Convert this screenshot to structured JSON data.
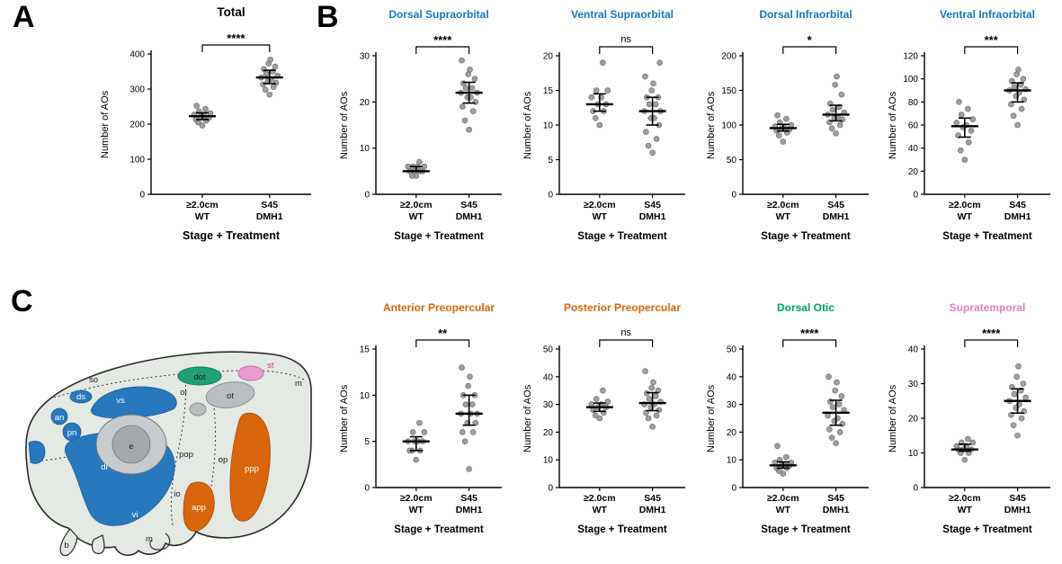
{
  "panels": {
    "a": "A",
    "b": "B",
    "c": "C"
  },
  "shared": {
    "ylabel": "Number of AOs",
    "xlabel": "Stage + Treatment",
    "group_labels": [
      [
        "≥2.0cm",
        "WT"
      ],
      [
        "S45",
        "DMH1"
      ]
    ]
  },
  "colors": {
    "blue": "#1878be",
    "orange": "#d9650d",
    "green": "#00a06a",
    "pink": "#e57fc2",
    "point_fill": "#8f8f8f",
    "axis": "#000000"
  },
  "chart_data": [
    {
      "id": "total",
      "panel": "A",
      "type": "scatter",
      "title": "Total",
      "title_color": "#000000",
      "significance": "****",
      "ylabel": "Number of AOs",
      "xlabel": "Stage + Treatment",
      "ylim": [
        0,
        400
      ],
      "yticks": [
        0,
        100,
        200,
        300,
        400
      ],
      "categories": [
        "≥2.0cm WT",
        "S45 DMH1"
      ],
      "series": [
        {
          "name": "≥2.0cm WT",
          "values": [
            196,
            205,
            210,
            214,
            218,
            221,
            224,
            227,
            231,
            236,
            243,
            252
          ]
        },
        {
          "name": "S45 DMH1",
          "values": [
            284,
            298,
            306,
            313,
            318,
            323,
            328,
            333,
            338,
            344,
            350,
            357,
            364,
            373,
            384
          ]
        }
      ]
    },
    {
      "id": "dorsal_supraorbital",
      "panel": "B",
      "type": "scatter",
      "title": "Dorsal Supraorbital",
      "title_color": "#1878be",
      "significance": "****",
      "ylabel": "Number of AOs",
      "xlabel": "Stage + Treatment",
      "ylim": [
        0,
        30
      ],
      "yticks": [
        0,
        10,
        20,
        30
      ],
      "categories": [
        "≥2.0cm WT",
        "S45 DMH1"
      ],
      "series": [
        {
          "name": "≥2.0cm WT",
          "values": [
            4,
            4,
            5,
            5,
            5,
            5,
            6,
            6,
            6,
            6,
            7
          ]
        },
        {
          "name": "S45 DMH1",
          "values": [
            14,
            16,
            18,
            19,
            20,
            21,
            21,
            22,
            22,
            23,
            23,
            24,
            25,
            26,
            27,
            29
          ]
        }
      ]
    },
    {
      "id": "ventral_supraorbital",
      "panel": "B",
      "type": "scatter",
      "title": "Ventral Supraorbital",
      "title_color": "#1878be",
      "significance": "ns",
      "ylabel": "Number of AOs",
      "xlabel": "Stage + Treatment",
      "ylim": [
        0,
        20
      ],
      "yticks": [
        0,
        5,
        10,
        15,
        20
      ],
      "categories": [
        "≥2.0cm WT",
        "S45 DMH1"
      ],
      "series": [
        {
          "name": "≥2.0cm WT",
          "values": [
            10,
            11,
            12,
            12,
            13,
            13,
            14,
            14,
            15,
            15,
            19
          ]
        },
        {
          "name": "S45 DMH1",
          "values": [
            6,
            7,
            8,
            9,
            10,
            11,
            11,
            12,
            12,
            13,
            13,
            14,
            14,
            15,
            16,
            17,
            19
          ]
        }
      ]
    },
    {
      "id": "dorsal_infraorbital",
      "panel": "B",
      "type": "scatter",
      "title": "Dorsal Infraorbital",
      "title_color": "#1878be",
      "significance": "*",
      "ylabel": "Number of AOs",
      "xlabel": "Stage + Treatment",
      "ylim": [
        0,
        200
      ],
      "yticks": [
        0,
        50,
        100,
        150,
        200
      ],
      "categories": [
        "≥2.0cm WT",
        "S45 DMH1"
      ],
      "series": [
        {
          "name": "≥2.0cm WT",
          "values": [
            76,
            85,
            89,
            92,
            94,
            95,
            96,
            98,
            100,
            104,
            109,
            114
          ]
        },
        {
          "name": "S45 DMH1",
          "values": [
            88,
            95,
            100,
            104,
            108,
            110,
            112,
            115,
            118,
            122,
            126,
            131,
            144,
            158,
            170
          ]
        }
      ]
    },
    {
      "id": "ventral_infraorbital",
      "panel": "B",
      "type": "scatter",
      "title": "Ventral Infraorbital",
      "title_color": "#1878be",
      "significance": "***",
      "ylabel": "Number of AOs",
      "xlabel": "Stage + Treatment",
      "ylim": [
        0,
        120
      ],
      "yticks": [
        0,
        20,
        40,
        60,
        80,
        100,
        120
      ],
      "categories": [
        "≥2.0cm WT",
        "S45 DMH1"
      ],
      "series": [
        {
          "name": "≥2.0cm WT",
          "values": [
            30,
            38,
            45,
            51,
            55,
            58,
            60,
            62,
            65,
            69,
            74,
            80
          ]
        },
        {
          "name": "S45 DMH1",
          "values": [
            60,
            68,
            74,
            78,
            82,
            85,
            88,
            90,
            91,
            93,
            95,
            98,
            100,
            104,
            108
          ]
        }
      ]
    },
    {
      "id": "anterior_preopercular",
      "panel": "B",
      "type": "scatter",
      "title": "Anterior Preopercular",
      "title_color": "#d9650d",
      "significance": "**",
      "ylabel": "Number of AOs",
      "xlabel": "Stage + Treatment",
      "ylim": [
        0,
        15
      ],
      "yticks": [
        0,
        5,
        10,
        15
      ],
      "categories": [
        "≥2.0cm WT",
        "S45 DMH1"
      ],
      "series": [
        {
          "name": "≥2.0cm WT",
          "values": [
            3,
            4,
            4,
            4,
            5,
            5,
            5,
            5,
            6,
            6,
            7
          ]
        },
        {
          "name": "S45 DMH1",
          "values": [
            2,
            5,
            6,
            6,
            7,
            7,
            8,
            8,
            8,
            9,
            9,
            10,
            10,
            11,
            12,
            13
          ]
        }
      ]
    },
    {
      "id": "posterior_preopercular",
      "panel": "B",
      "type": "scatter",
      "title": "Posterior Preopercular",
      "title_color": "#d9650d",
      "significance": "ns",
      "ylabel": "Number of AOs",
      "xlabel": "Stage + Treatment",
      "ylim": [
        0,
        50
      ],
      "yticks": [
        0,
        10,
        20,
        30,
        40,
        50
      ],
      "categories": [
        "≥2.0cm WT",
        "S45 DMH1"
      ],
      "series": [
        {
          "name": "≥2.0cm WT",
          "values": [
            25,
            26,
            27,
            28,
            29,
            29,
            30,
            30,
            31,
            32,
            35
          ]
        },
        {
          "name": "S45 DMH1",
          "values": [
            22,
            25,
            26,
            27,
            28,
            29,
            30,
            30,
            31,
            32,
            33,
            34,
            35,
            36,
            38,
            42
          ]
        }
      ]
    },
    {
      "id": "dorsal_otic",
      "panel": "B",
      "type": "scatter",
      "title": "Dorsal Otic",
      "title_color": "#00a06a",
      "significance": "****",
      "ylabel": "Number of AOs",
      "xlabel": "Stage + Treatment",
      "ylim": [
        0,
        50
      ],
      "yticks": [
        0,
        10,
        20,
        30,
        40,
        50
      ],
      "categories": [
        "≥2.0cm WT",
        "S45 DMH1"
      ],
      "series": [
        {
          "name": "≥2.0cm WT",
          "values": [
            5,
            6,
            7,
            7,
            8,
            8,
            8,
            9,
            9,
            10,
            11,
            15
          ]
        },
        {
          "name": "S45 DMH1",
          "values": [
            16,
            18,
            20,
            21,
            23,
            24,
            25,
            26,
            28,
            29,
            30,
            31,
            33,
            35,
            38,
            40
          ]
        }
      ]
    },
    {
      "id": "supratemporal",
      "panel": "B",
      "type": "scatter",
      "title": "Supratemporal",
      "title_color": "#e57fc2",
      "significance": "****",
      "ylabel": "Number of AOs",
      "xlabel": "Stage + Treatment",
      "ylim": [
        0,
        40
      ],
      "yticks": [
        0,
        10,
        20,
        30,
        40
      ],
      "categories": [
        "≥2.0cm WT",
        "S45 DMH1"
      ],
      "series": [
        {
          "name": "≥2.0cm WT",
          "values": [
            8,
            10,
            10,
            11,
            11,
            11,
            12,
            12,
            13,
            13,
            14
          ]
        },
        {
          "name": "S45 DMH1",
          "values": [
            15,
            18,
            20,
            21,
            22,
            23,
            24,
            25,
            26,
            27,
            28,
            29,
            30,
            32,
            35
          ]
        }
      ]
    }
  ],
  "diagram": {
    "labels": {
      "so": "so",
      "ds": "ds",
      "vs": "vs",
      "an": "an",
      "pn": "pn",
      "e": "e",
      "dot": "dot",
      "ol": "ol",
      "ot": "ot",
      "st": "st",
      "m_top": "m",
      "di": "di",
      "io": "io",
      "vi": "vi",
      "pop": "pop",
      "op": "op",
      "app": "app",
      "ppp": "ppp",
      "b": "b",
      "m_bottom": "m"
    }
  }
}
